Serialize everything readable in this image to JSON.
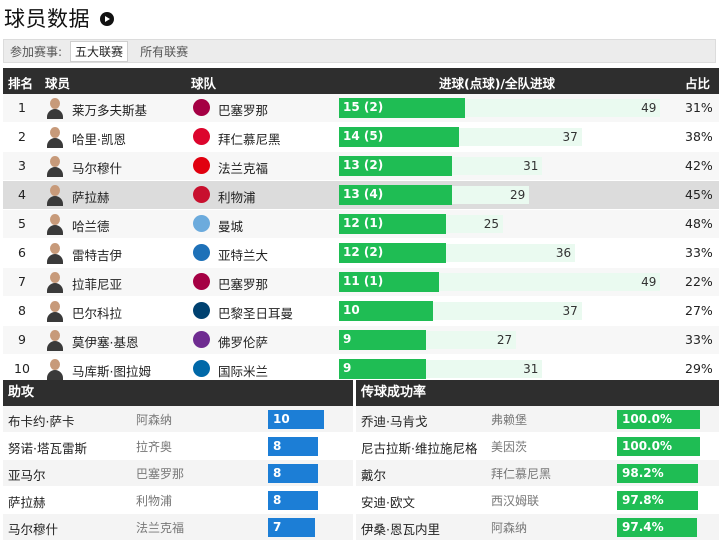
{
  "title": "球员数据",
  "filter": {
    "label": "参加赛事:",
    "options": [
      "五大联赛",
      "所有联赛"
    ],
    "active_index": 0
  },
  "scorers": {
    "headers": {
      "rank": "排名",
      "player": "球员",
      "team": "球队",
      "goals": "进球(点球)/全队进球",
      "pct": "占比"
    },
    "max_team_goals": 50,
    "rows": [
      {
        "rank": "1",
        "player": "莱万多夫斯基",
        "team": "巴塞罗那",
        "goals": 15,
        "goals_label": "15 (2)",
        "team_goals": 49,
        "team_goals_label": "49",
        "pct": "31%",
        "crest_color": "#a50044"
      },
      {
        "rank": "2",
        "player": "哈里·凯恩",
        "team": "拜仁慕尼黑",
        "goals": 14,
        "goals_label": "14 (5)",
        "team_goals": 37,
        "team_goals_label": "37",
        "pct": "38%",
        "crest_color": "#dc052d"
      },
      {
        "rank": "3",
        "player": "马尔穆什",
        "team": "法兰克福",
        "goals": 13,
        "goals_label": "13 (2)",
        "team_goals": 31,
        "team_goals_label": "31",
        "pct": "42%",
        "crest_color": "#e1000f"
      },
      {
        "rank": "4",
        "player": "萨拉赫",
        "team": "利物浦",
        "goals": 13,
        "goals_label": "13 (4)",
        "team_goals": 29,
        "team_goals_label": "29",
        "pct": "45%",
        "crest_color": "#c8102e"
      },
      {
        "rank": "5",
        "player": "哈兰德",
        "team": "曼城",
        "goals": 12,
        "goals_label": "12 (1)",
        "team_goals": 25,
        "team_goals_label": "25",
        "pct": "48%",
        "crest_color": "#6cabdd"
      },
      {
        "rank": "6",
        "player": "雷特吉伊",
        "team": "亚特兰大",
        "goals": 12,
        "goals_label": "12 (2)",
        "team_goals": 36,
        "team_goals_label": "36",
        "pct": "33%",
        "crest_color": "#1e71b8"
      },
      {
        "rank": "7",
        "player": "拉菲尼亚",
        "team": "巴塞罗那",
        "goals": 11,
        "goals_label": "11 (1)",
        "team_goals": 49,
        "team_goals_label": "49",
        "pct": "22%",
        "crest_color": "#a50044"
      },
      {
        "rank": "8",
        "player": "巴尔科拉",
        "team": "巴黎圣日耳曼",
        "goals": 10,
        "goals_label": "10",
        "team_goals": 37,
        "team_goals_label": "37",
        "pct": "27%",
        "crest_color": "#004170"
      },
      {
        "rank": "9",
        "player": "莫伊塞·基恩",
        "team": "佛罗伦萨",
        "goals": 9,
        "goals_label": "9",
        "team_goals": 27,
        "team_goals_label": "27",
        "pct": "33%",
        "crest_color": "#6f2c91"
      },
      {
        "rank": "10",
        "player": "马库斯·图拉姆",
        "team": "国际米兰",
        "goals": 9,
        "goals_label": "9",
        "team_goals": 31,
        "team_goals_label": "31",
        "pct": "29%",
        "crest_color": "#0068a8"
      }
    ]
  },
  "assists": {
    "header": "助攻",
    "bar_color": "#1c7ed6",
    "max": 10,
    "rows": [
      {
        "player": "布卡约·萨卡",
        "club": "阿森纳",
        "value": 10,
        "label": "10"
      },
      {
        "player": "努诺·塔瓦雷斯",
        "club": "拉齐奥",
        "value": 8,
        "label": "8"
      },
      {
        "player": "亚马尔",
        "club": "巴塞罗那",
        "value": 8,
        "label": "8"
      },
      {
        "player": "萨拉赫",
        "club": "利物浦",
        "value": 8,
        "label": "8"
      },
      {
        "player": "马尔穆什",
        "club": "法兰克福",
        "value": 7,
        "label": "7"
      }
    ]
  },
  "passing": {
    "header": "传球成功率",
    "bar_color": "#1fbd54",
    "rows": [
      {
        "player": "乔迪·马肯戈",
        "club": "弗赖堡",
        "value": 100.0,
        "label": "100.0%"
      },
      {
        "player": "尼古拉斯·维拉施尼格",
        "club": "美因茨",
        "value": 100.0,
        "label": "100.0%"
      },
      {
        "player": "戴尔",
        "club": "拜仁慕尼黑",
        "value": 98.2,
        "label": "98.2%"
      },
      {
        "player": "安迪·欧文",
        "club": "西汉姆联",
        "value": 97.8,
        "label": "97.8%"
      },
      {
        "player": "伊桑·恩瓦内里",
        "club": "阿森纳",
        "value": 97.4,
        "label": "97.4%"
      }
    ]
  }
}
